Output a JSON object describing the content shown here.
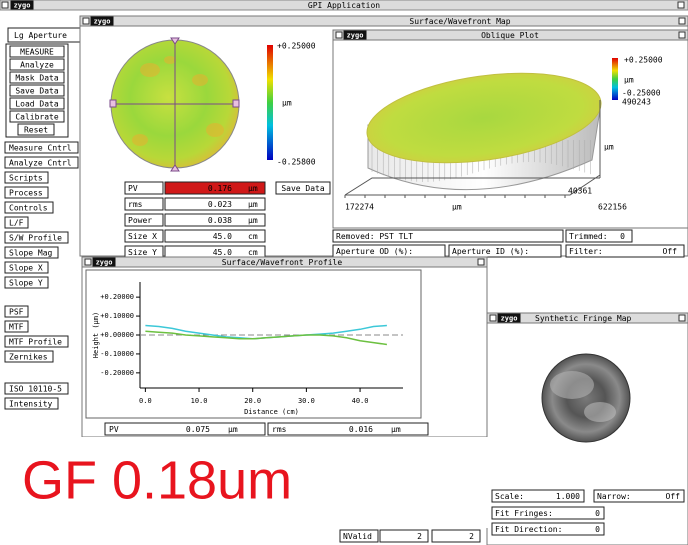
{
  "titlebar": {
    "logo": "zygo",
    "title": "GPI Application"
  },
  "sidebar": {
    "tab": "Lg Aperture",
    "buttons": [
      "MEASURE",
      "Analyze",
      "Mask Data",
      "Save Data",
      "Load Data",
      "Calibrate",
      "Reset"
    ],
    "menu": [
      "Measure Cntrl",
      "Analyze Cntrl",
      "Scripts",
      "Process",
      "Controls",
      "L/F",
      "S/W Profile",
      "Slope Mag",
      "Slope X",
      "Slope Y"
    ],
    "analysis": [
      "PSF",
      "MTF",
      "MTF Profile",
      "Zernikes"
    ],
    "extra": [
      "ISO 10110-5",
      "Intensity"
    ]
  },
  "map_window": {
    "logo": "zygo",
    "title": "Surface/Wavefront Map",
    "scale_top": "+0.25000",
    "scale_unit": "µm",
    "scale_bottom": "-0.25800",
    "stats": [
      [
        "PV",
        "0.176",
        "µm"
      ],
      [
        "rms",
        "0.023",
        "µm"
      ],
      [
        "Power",
        "0.038",
        "µm"
      ],
      [
        "Size X",
        "45.0",
        "cm"
      ],
      [
        "Size Y",
        "45.0",
        "cm"
      ]
    ],
    "save_button": "Save Data"
  },
  "oblique_window": {
    "logo": "zygo",
    "title": "Oblique Plot",
    "scale_top": "+0.25000",
    "scale_unit": "µm",
    "scale_bottom": "-0.25000",
    "z_value": "490243",
    "y_unit": "µm",
    "y_value": "40361",
    "x_start": "172274",
    "x_unit": "µm",
    "x_end": "622156"
  },
  "status": {
    "removed": "Removed: PST TLT",
    "trimmed": [
      "Trimmed:",
      "0"
    ],
    "aperture_od": "Aperture OD (%):",
    "aperture_id": "Aperture ID (%):",
    "filter": [
      "Filter:",
      "Off"
    ]
  },
  "profile_window": {
    "logo": "zygo",
    "stats": [
      [
        "PV",
        "0.075",
        "µm"
      ],
      [
        "rms",
        "0.016",
        "µm"
      ]
    ]
  },
  "chart_data": {
    "type": "line",
    "title": "Surface/Wavefront Profile",
    "xlabel": "Distance (cm)",
    "ylabel": "Height (µm)",
    "x": [
      0,
      2.5,
      5,
      7.5,
      10,
      12.5,
      15,
      17.5,
      20,
      22.5,
      25,
      27.5,
      30,
      32.5,
      35,
      37.5,
      40,
      42.5,
      45
    ],
    "series": [
      {
        "color": "#3cc8d8",
        "values": [
          0.05,
          0.045,
          0.035,
          0.02,
          0.01,
          0.0,
          -0.01,
          -0.015,
          -0.02,
          -0.015,
          -0.01,
          -0.005,
          0.0,
          0.005,
          0.01,
          0.02,
          0.03,
          0.045,
          0.05
        ]
      },
      {
        "color": "#6cc040",
        "values": [
          0.02,
          0.015,
          0.01,
          0.0,
          -0.005,
          -0.01,
          -0.015,
          -0.02,
          -0.02,
          -0.015,
          -0.01,
          -0.005,
          0.0,
          0.0,
          -0.005,
          -0.015,
          -0.03,
          -0.04,
          -0.05
        ]
      }
    ],
    "xlim": [
      -1,
      48
    ],
    "ylim": [
      -0.28,
      0.28
    ],
    "xticks": [
      {
        "value": 0,
        "label": "0.0"
      },
      {
        "value": 10,
        "label": "10.0"
      },
      {
        "value": 20,
        "label": "20.0"
      },
      {
        "value": 30,
        "label": "30.0"
      },
      {
        "value": 40,
        "label": "40.0"
      }
    ],
    "yticks": [
      {
        "value": 0.2,
        "label": "+0.20000"
      },
      {
        "value": 0.1,
        "label": "+0.10000"
      },
      {
        "value": 0,
        "label": "+0.00000"
      },
      {
        "value": -0.1,
        "label": "-0.10000"
      },
      {
        "value": -0.2,
        "label": "-0.20000"
      }
    ]
  },
  "fringe_window": {
    "logo": "zygo",
    "title": "Synthetic Fringe Map",
    "fields": [
      [
        "Scale:",
        "1.000"
      ],
      [
        "Narrow:",
        "Off"
      ],
      [
        "Fit Fringes:",
        "0"
      ],
      [
        "Fit Direction:",
        "0"
      ]
    ]
  },
  "footer": {
    "label": "NValid",
    "values": [
      "2",
      "2"
    ]
  },
  "annotation": "GF 0.18um"
}
